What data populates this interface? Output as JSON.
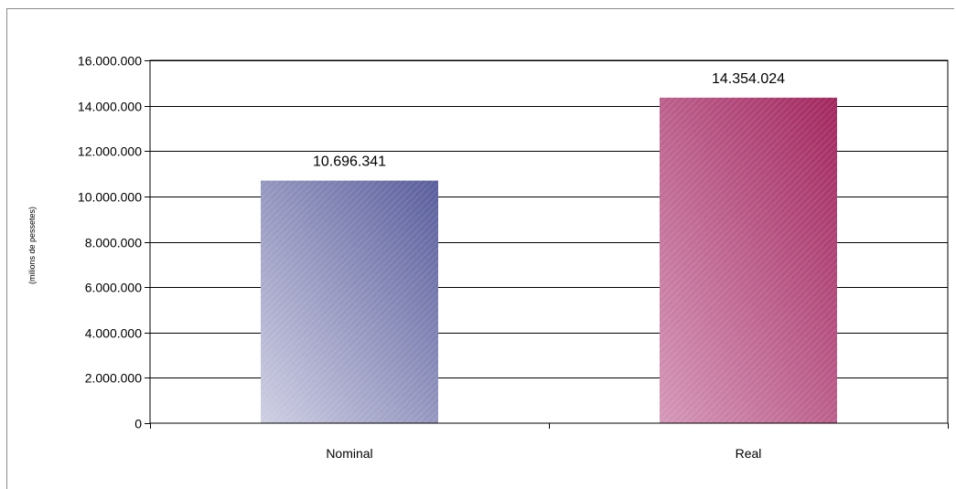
{
  "chart_data": {
    "type": "bar",
    "title": "",
    "xlabel": "",
    "ylabel": "(milions de pessetes)",
    "categories": [
      "Nominal",
      "Real"
    ],
    "values": [
      10696341,
      14354024
    ],
    "value_labels": [
      "10.696.341",
      "14.354.024"
    ],
    "ylim": [
      0,
      16000000
    ],
    "y_ticks": [
      0,
      2000000,
      4000000,
      6000000,
      8000000,
      10000000,
      12000000,
      14000000,
      16000000
    ],
    "y_tick_labels": [
      "0",
      "2.000.000",
      "4.000.000",
      "6.000.000",
      "8.000.000",
      "10.000.000",
      "12.000.000",
      "14.000.000",
      "16.000.000"
    ],
    "grid": true,
    "legend": "none",
    "colors": {
      "Nominal": [
        "#cfcfe3",
        "#5a5e9c"
      ],
      "Real": [
        "#d598b9",
        "#a2285f"
      ]
    }
  }
}
